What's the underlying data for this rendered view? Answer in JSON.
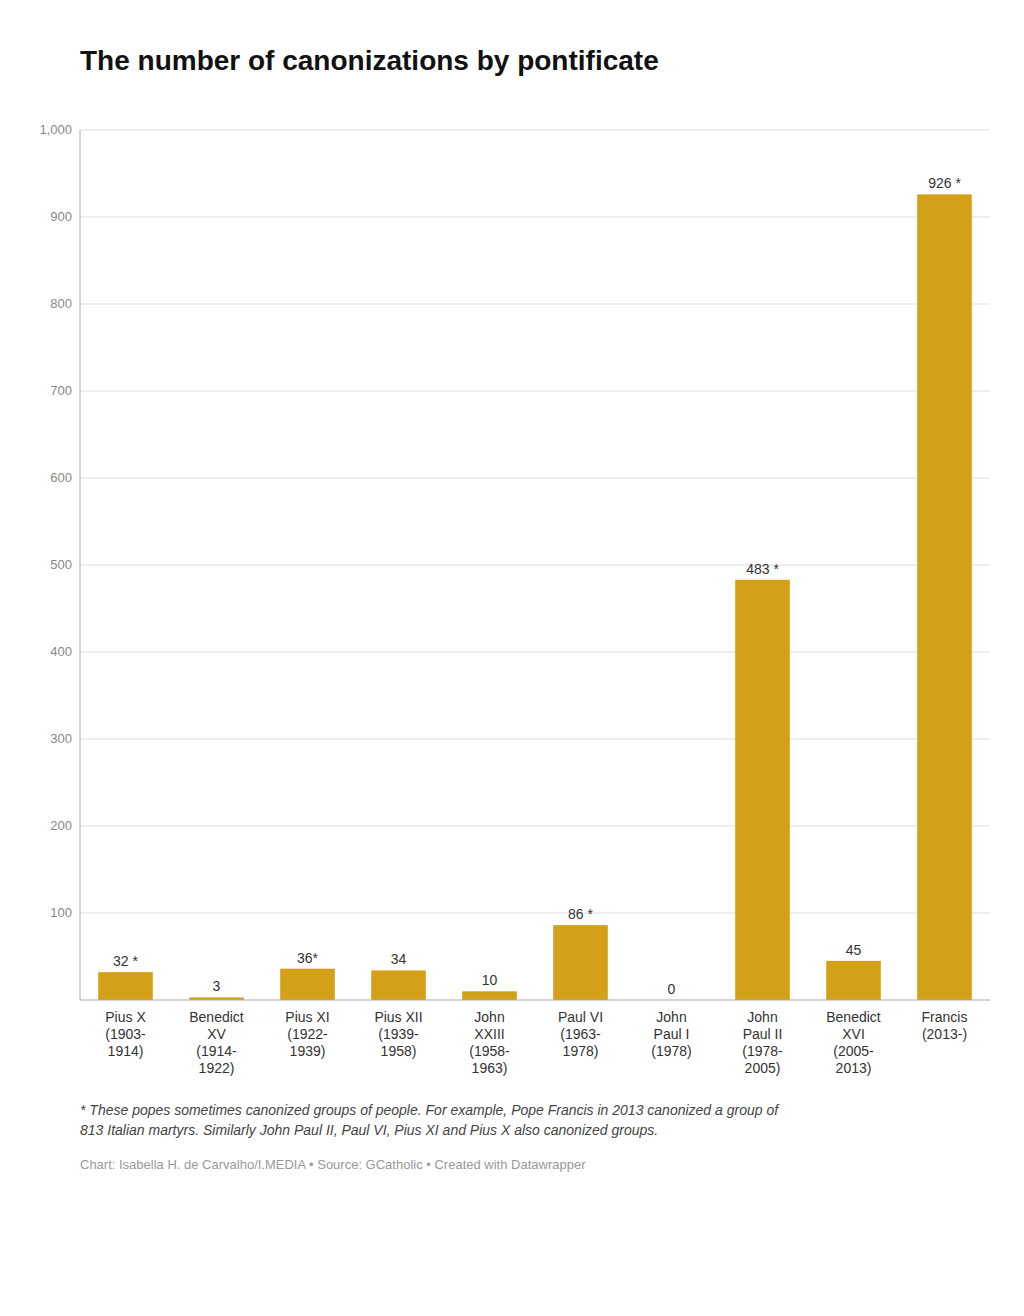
{
  "chart_data": {
    "type": "bar",
    "title": "The number of canonizations by pontificate",
    "categories": [
      "Pius X\n(1903-\n1914)",
      "Benedict\nXV\n(1914-\n1922)",
      "Pius XI\n(1922-\n1939)",
      "Pius XII\n(1939-\n1958)",
      "John\nXXIII\n(1958-\n1963)",
      "Paul VI\n(1963-\n1978)",
      "John\nPaul I\n(1978)",
      "John\nPaul II\n(1978-\n2005)",
      "Benedict\nXVI\n(2005-\n2013)",
      "Francis\n(2013-)"
    ],
    "values": [
      32,
      3,
      36,
      34,
      10,
      86,
      0,
      483,
      45,
      926
    ],
    "value_labels": [
      "32 *",
      "3",
      "36*",
      "34",
      "10",
      "86 *",
      "0",
      "483 *",
      "45",
      "926 *"
    ],
    "color": "#D4A017",
    "ylim": [
      0,
      1000
    ],
    "yticks": [
      100,
      200,
      300,
      400,
      500,
      600,
      700,
      800,
      900,
      {
        "value": 1000,
        "label": "1,000"
      }
    ],
    "grid": true,
    "footnotes": [
      "* These popes sometimes canonized groups of people. For example, Pope Francis in 2013 canonized a group of",
      "813 Italian martyrs. Similarly John Paul II, Paul VI, Pius XI and Pius X also canonized groups."
    ],
    "source": "Chart: Isabella H. de Carvalho/I.MEDIA • Source: GCatholic • Created with Datawrapper"
  }
}
